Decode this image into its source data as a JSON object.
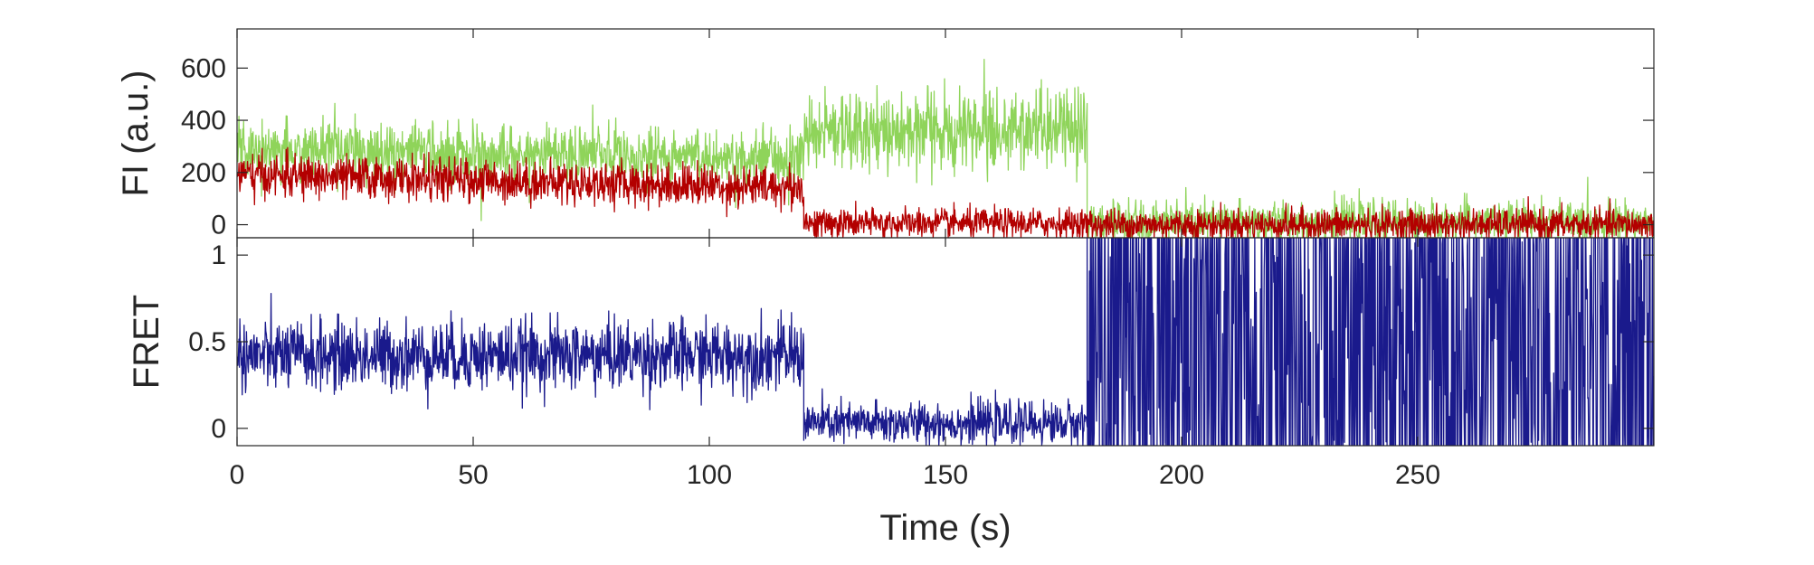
{
  "chart_data": [
    {
      "type": "line",
      "panel": "top",
      "ylabel": "FI (a.u.)",
      "xlim": [
        0,
        300
      ],
      "ylim": [
        -50,
        750
      ],
      "yticks": [
        0,
        200,
        400,
        600
      ],
      "yticklabels": [
        "0",
        "200",
        "400",
        "600"
      ],
      "grid": false,
      "series": [
        {
          "color": "#8fd45a",
          "segments": [
            {
              "x": [
                0,
                120
              ],
              "mean": 290,
              "sd": 55,
              "trend": -0.3
            },
            {
              "x": [
                120,
                180
              ],
              "mean": 360,
              "sd": 75,
              "trend": 0
            },
            {
              "x": [
                180,
                300
              ],
              "mean": 10,
              "sd": 40,
              "trend": 0
            }
          ]
        },
        {
          "color": "#b30000",
          "segments": [
            {
              "x": [
                0,
                120
              ],
              "mean": 190,
              "sd": 40,
              "trend": -0.4
            },
            {
              "x": [
                120,
                180
              ],
              "mean": 5,
              "sd": 28,
              "trend": 0
            },
            {
              "x": [
                180,
                300
              ],
              "mean": 0,
              "sd": 30,
              "trend": 0
            }
          ]
        }
      ]
    },
    {
      "type": "line",
      "panel": "bottom",
      "ylabel": "FRET",
      "xlabel": "Time (s)",
      "xlim": [
        0,
        300
      ],
      "ylim": [
        -0.1,
        1.1
      ],
      "xticks": [
        0,
        50,
        100,
        150,
        200,
        250
      ],
      "xticklabels": [
        "0",
        "50",
        "100",
        "150",
        "200",
        "250"
      ],
      "yticks": [
        0,
        0.5,
        1
      ],
      "yticklabels": [
        "0",
        "0.5",
        "1"
      ],
      "grid": false,
      "series": [
        {
          "color": "#1a1a8c",
          "segments": [
            {
              "x": [
                0,
                120
              ],
              "mean": 0.42,
              "sd": 0.1,
              "trend": 0
            },
            {
              "x": [
                120,
                180
              ],
              "mean": 0.03,
              "sd": 0.06,
              "trend": 0
            },
            {
              "x": [
                180,
                300
              ],
              "mean": 0.5,
              "sd": 0.7,
              "trend": 0
            }
          ]
        }
      ]
    }
  ]
}
